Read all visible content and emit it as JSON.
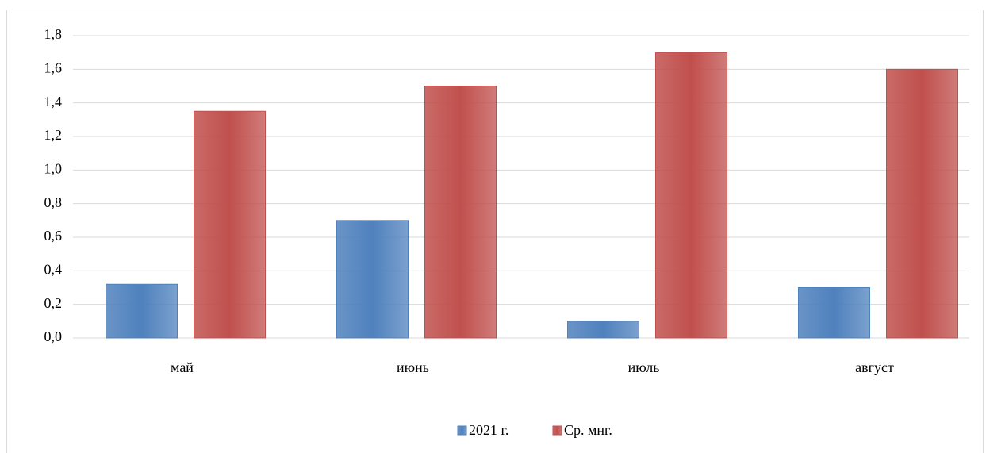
{
  "chart_data": {
    "type": "bar",
    "categories": [
      "май",
      "июнь",
      "июль",
      "август"
    ],
    "series": [
      {
        "name": "2021 г.",
        "color": "#4f81bd",
        "values": [
          0.32,
          0.7,
          0.1,
          0.3
        ]
      },
      {
        "name": "Ср. мнг.",
        "color": "#c0504d",
        "values": [
          1.35,
          1.5,
          1.7,
          1.6
        ]
      }
    ],
    "ylim": [
      0,
      1.8
    ],
    "yticks": [
      {
        "value": 0,
        "label": "0,0"
      },
      {
        "value": 0.2,
        "label": "0,2"
      },
      {
        "value": 0.4,
        "label": "0,4"
      },
      {
        "value": 0.6,
        "label": "0,6"
      },
      {
        "value": 0.8,
        "label": "0,8"
      },
      {
        "value": 1.0,
        "label": "1,0"
      },
      {
        "value": 1.2,
        "label": "1,2"
      },
      {
        "value": 1.4,
        "label": "1,4"
      },
      {
        "value": 1.6,
        "label": "1,6"
      },
      {
        "value": 1.8,
        "label": "1,8"
      }
    ],
    "grid": true,
    "legend": "bottom"
  }
}
